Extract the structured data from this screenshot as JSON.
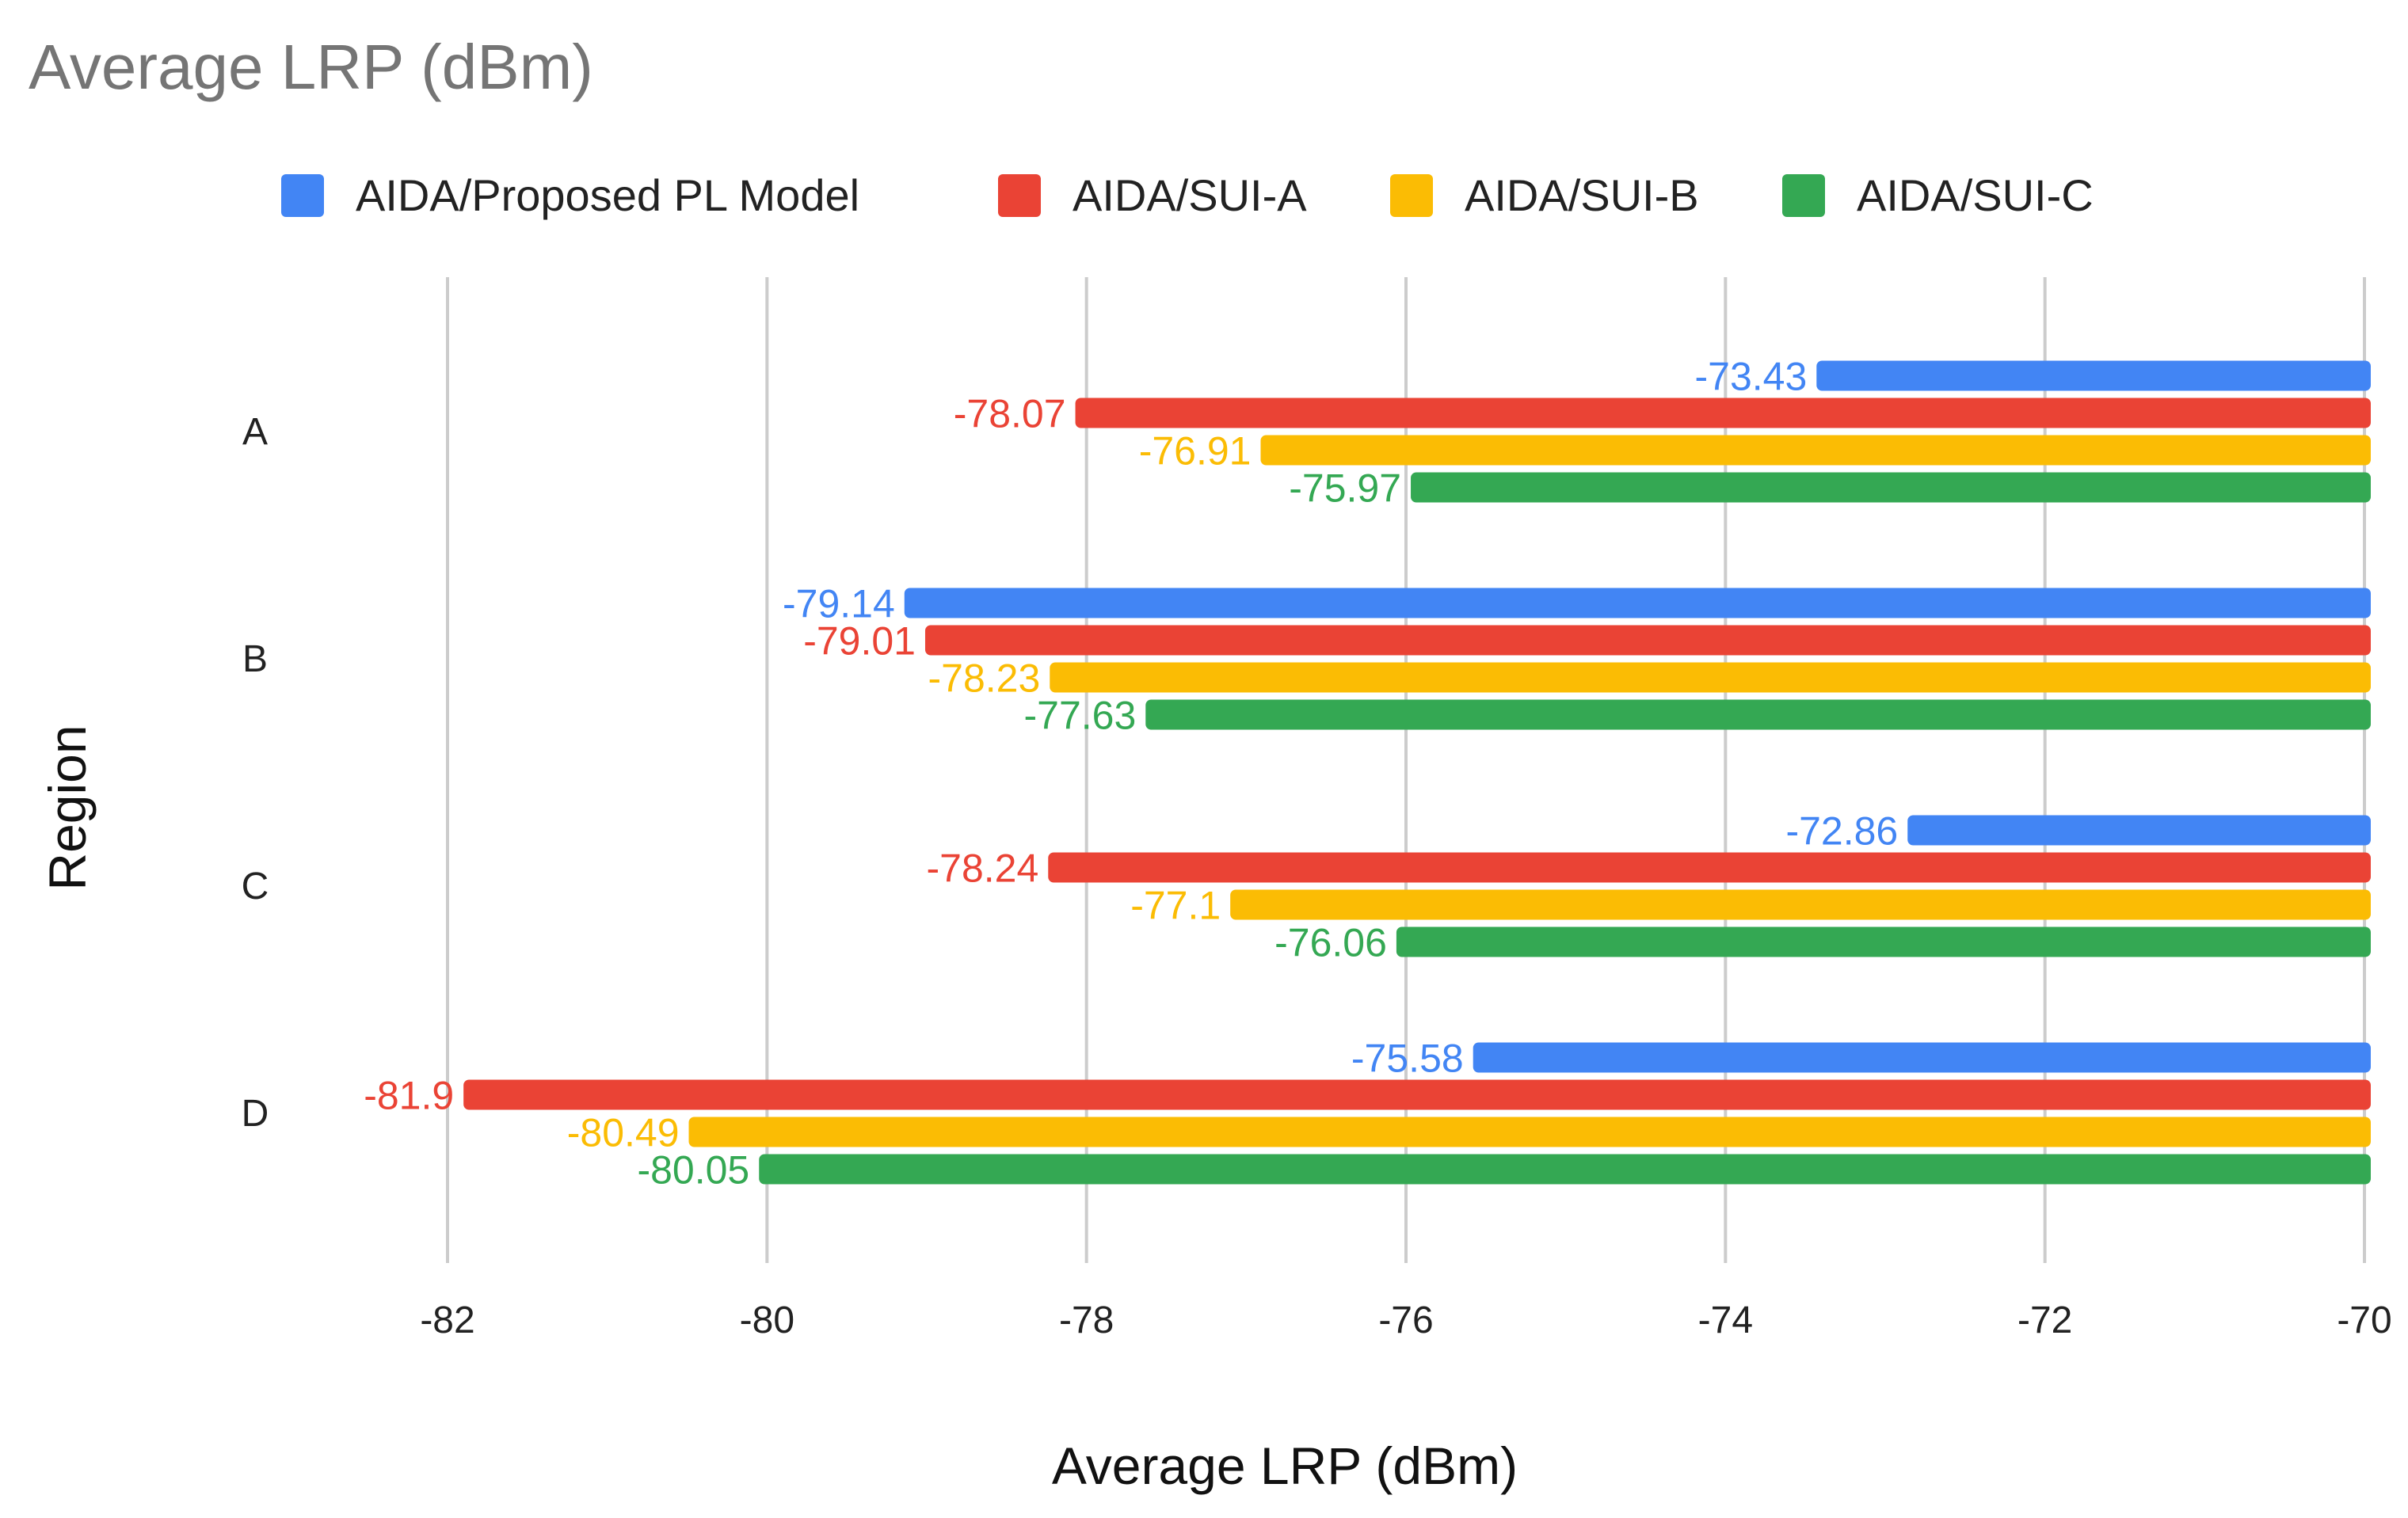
{
  "chart_data": {
    "type": "bar",
    "orientation": "horizontal",
    "title": "Average LRP (dBm)",
    "xlabel": "Average LRP (dBm)",
    "ylabel": "Region",
    "xlim": [
      -82,
      -70
    ],
    "xticks": [
      -82,
      -80,
      -78,
      -76,
      -74,
      -72,
      -70
    ],
    "xtick_labels": [
      "-82",
      "-80",
      "-78",
      "-76",
      "-74",
      "-72",
      "-70"
    ],
    "grid": true,
    "legend_position": "top",
    "categories": [
      "A",
      "B",
      "C",
      "D"
    ],
    "series": [
      {
        "name": "AIDA/Proposed PL Model",
        "color": "#4285F4",
        "values": [
          -73.43,
          -79.14,
          -72.86,
          -75.58
        ],
        "labels": [
          "-73.43",
          "-79.14",
          "-72.86",
          "-75.58"
        ]
      },
      {
        "name": "AIDA/SUI-A",
        "color": "#EA4335",
        "values": [
          -78.07,
          -79.01,
          -78.24,
          -81.9
        ],
        "labels": [
          "-78.07",
          "-79.01",
          "-78.24",
          "-81.9"
        ]
      },
      {
        "name": "AIDA/SUI-B",
        "color": "#FBBC04",
        "values": [
          -76.91,
          -78.23,
          -77.1,
          -80.49
        ],
        "labels": [
          "-76.91",
          "-78.23",
          "-77.1",
          "-80.49"
        ]
      },
      {
        "name": "AIDA/SUI-C",
        "color": "#34A853",
        "values": [
          -75.97,
          -77.63,
          -76.06,
          -80.05
        ],
        "labels": [
          "-75.97",
          "-77.63",
          "-76.06",
          "-80.05"
        ]
      }
    ]
  }
}
